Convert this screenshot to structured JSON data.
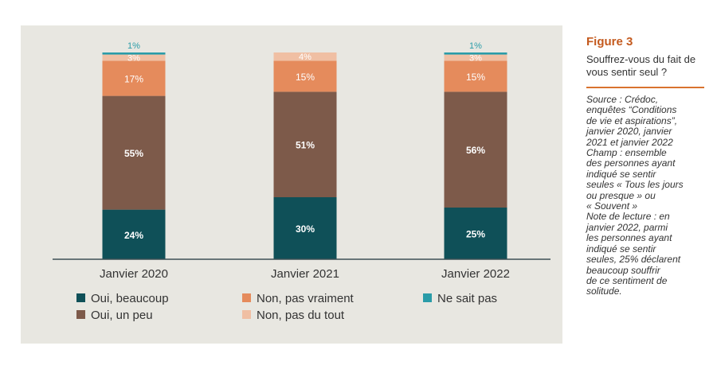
{
  "chart_data": {
    "type": "bar",
    "stacked": true,
    "categories": [
      "Janvier 2020",
      "Janvier 2021",
      "Janvier 2022"
    ],
    "series": [
      {
        "name": "Oui, beaucoup",
        "color": "#0f5058",
        "values": [
          24,
          30,
          25
        ],
        "labels": [
          "24%",
          "30%",
          "25%"
        ]
      },
      {
        "name": "Oui, un peu",
        "color": "#7d5a4a",
        "values": [
          55,
          51,
          56
        ],
        "labels": [
          "55%",
          "51%",
          "56%"
        ]
      },
      {
        "name": "Non, pas vraiment",
        "color": "#e58b5c",
        "values": [
          17,
          15,
          15
        ],
        "labels": [
          "17%",
          "15%",
          "15%"
        ]
      },
      {
        "name": "Non, pas du tout",
        "color": "#f0bfa3",
        "values": [
          3,
          4,
          3
        ],
        "labels": [
          "3%",
          "4%",
          "3%"
        ]
      },
      {
        "name": "Ne sait pas",
        "color": "#2a9ca8",
        "values": [
          1,
          0,
          1
        ],
        "labels": [
          "1%",
          "",
          "1%"
        ]
      }
    ],
    "ylim": [
      0,
      100
    ],
    "title": "",
    "xlabel": "",
    "ylabel": "",
    "grid": false,
    "legend_position": "bottom"
  },
  "sidebar": {
    "figure_title": "Figure 3",
    "question": "Souffrez-vous du fait de vous sentir seul ?",
    "note": "Source : Crédoc,\nenquêtes “Conditions\nde vie et aspirations”,\njanvier 2020, janvier\n2021 et janvier 2022\nChamp : ensemble\ndes personnes ayant\nindiqué se sentir\nseules « Tous les jours\nou presque » ou\n« Souvent »\nNote de lecture : en\njanvier 2022, parmi\nles personnes ayant\nindiqué se sentir\nseules, 25% déclarent\nbeaucoup souffrir\nde ce sentiment de\nsolitude."
  }
}
